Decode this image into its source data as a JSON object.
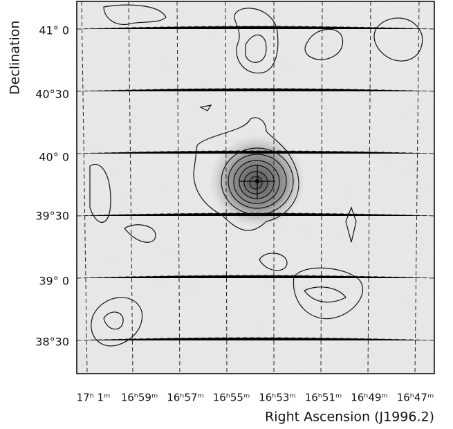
{
  "chart_data": {
    "type": "map",
    "xlabel": "Right Ascension (J1996.2)",
    "ylabel": "Declination",
    "xtick_labels": [
      "17ʰ 1ᵐ",
      "16ʰ59ᵐ",
      "16ʰ57ᵐ",
      "16ʰ55ᵐ",
      "16ʰ53ᵐ",
      "16ʰ51ᵐ",
      "16ʰ49ᵐ",
      "16ʰ47ᵐ"
    ],
    "ytick_labels": [
      "41° 0",
      "40°30",
      "40° 0",
      "39°30",
      "39° 0",
      "38°30"
    ]
  }
}
